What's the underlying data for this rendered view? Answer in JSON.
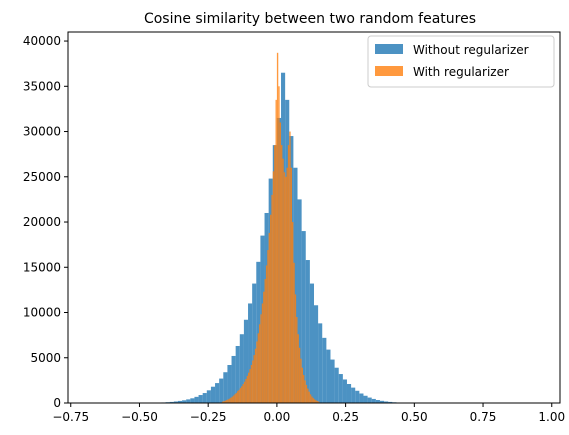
{
  "chart_data": {
    "type": "bar",
    "title": "Cosine similarity between two random features",
    "xlabel": "",
    "ylabel": "",
    "xlim": [
      -0.76,
      1.03
    ],
    "ylim": [
      0,
      41000
    ],
    "x_ticks": [
      -0.75,
      -0.5,
      -0.25,
      0.0,
      0.25,
      0.5,
      0.75,
      1.0
    ],
    "x_tick_labels": [
      "−0.75",
      "−0.50",
      "−0.25",
      "0.00",
      "0.25",
      "0.50",
      "0.75",
      "1.00"
    ],
    "y_ticks": [
      0,
      5000,
      10000,
      15000,
      20000,
      25000,
      30000,
      35000,
      40000
    ],
    "y_tick_labels": [
      "0",
      "5000",
      "10000",
      "15000",
      "20000",
      "25000",
      "30000",
      "35000",
      "40000"
    ],
    "grid": false,
    "legend_position": "top-right",
    "series": [
      {
        "name": "Without regularizer",
        "color": "#1f77b4",
        "opacity": 0.8,
        "bin_width": 0.015,
        "bins": [
          [
            -0.45,
            20
          ],
          [
            -0.435,
            40
          ],
          [
            -0.42,
            60
          ],
          [
            -0.405,
            90
          ],
          [
            -0.39,
            120
          ],
          [
            -0.375,
            170
          ],
          [
            -0.36,
            230
          ],
          [
            -0.345,
            300
          ],
          [
            -0.33,
            400
          ],
          [
            -0.315,
            520
          ],
          [
            -0.3,
            680
          ],
          [
            -0.285,
            880
          ],
          [
            -0.27,
            1100
          ],
          [
            -0.255,
            1400
          ],
          [
            -0.24,
            1800
          ],
          [
            -0.225,
            2200
          ],
          [
            -0.21,
            2700
          ],
          [
            -0.195,
            3400
          ],
          [
            -0.18,
            4200
          ],
          [
            -0.165,
            5200
          ],
          [
            -0.15,
            6300
          ],
          [
            -0.135,
            7600
          ],
          [
            -0.12,
            9200
          ],
          [
            -0.105,
            11000
          ],
          [
            -0.09,
            13200
          ],
          [
            -0.075,
            15600
          ],
          [
            -0.06,
            18500
          ],
          [
            -0.045,
            21000
          ],
          [
            -0.03,
            24800
          ],
          [
            -0.015,
            28500
          ],
          [
            0.0,
            31500
          ],
          [
            0.015,
            36500
          ],
          [
            0.03,
            33500
          ],
          [
            0.045,
            29500
          ],
          [
            0.06,
            26000
          ],
          [
            0.075,
            22500
          ],
          [
            0.09,
            19000
          ],
          [
            0.105,
            15800
          ],
          [
            0.12,
            13200
          ],
          [
            0.135,
            10800
          ],
          [
            0.15,
            8800
          ],
          [
            0.165,
            7200
          ],
          [
            0.18,
            5900
          ],
          [
            0.195,
            4800
          ],
          [
            0.21,
            3900
          ],
          [
            0.225,
            3200
          ],
          [
            0.24,
            2600
          ],
          [
            0.255,
            2100
          ],
          [
            0.27,
            1700
          ],
          [
            0.285,
            1350
          ],
          [
            0.3,
            1050
          ],
          [
            0.315,
            800
          ],
          [
            0.33,
            600
          ],
          [
            0.345,
            450
          ],
          [
            0.36,
            330
          ],
          [
            0.375,
            240
          ],
          [
            0.39,
            170
          ],
          [
            0.405,
            120
          ],
          [
            0.42,
            80
          ],
          [
            0.435,
            55
          ],
          [
            0.45,
            35
          ],
          [
            0.465,
            22
          ],
          [
            0.48,
            14
          ],
          [
            0.495,
            8
          ]
        ]
      },
      {
        "name": "With regularizer",
        "color": "#ff7f0e",
        "opacity": 0.8,
        "bin_width": 0.005,
        "bins": [
          [
            -0.2,
            150
          ],
          [
            -0.195,
            200
          ],
          [
            -0.19,
            260
          ],
          [
            -0.185,
            320
          ],
          [
            -0.18,
            400
          ],
          [
            -0.175,
            480
          ],
          [
            -0.17,
            580
          ],
          [
            -0.165,
            700
          ],
          [
            -0.16,
            820
          ],
          [
            -0.155,
            960
          ],
          [
            -0.15,
            1100
          ],
          [
            -0.145,
            1300
          ],
          [
            -0.14,
            1450
          ],
          [
            -0.135,
            1650
          ],
          [
            -0.13,
            1850
          ],
          [
            -0.125,
            2100
          ],
          [
            -0.12,
            2350
          ],
          [
            -0.115,
            2650
          ],
          [
            -0.11,
            3000
          ],
          [
            -0.105,
            3350
          ],
          [
            -0.1,
            3750
          ],
          [
            -0.095,
            4200
          ],
          [
            -0.09,
            4700
          ],
          [
            -0.085,
            5300
          ],
          [
            -0.08,
            6000
          ],
          [
            -0.075,
            6800
          ],
          [
            -0.07,
            7700
          ],
          [
            -0.065,
            8700
          ],
          [
            -0.06,
            9800
          ],
          [
            -0.055,
            11000
          ],
          [
            -0.05,
            12300
          ],
          [
            -0.045,
            13700
          ],
          [
            -0.04,
            15200
          ],
          [
            -0.035,
            16900
          ],
          [
            -0.03,
            18800
          ],
          [
            -0.025,
            20800
          ],
          [
            -0.02,
            23000
          ],
          [
            -0.015,
            25600
          ],
          [
            -0.01,
            28500
          ],
          [
            -0.005,
            33500
          ],
          [
            0.0,
            38700
          ],
          [
            0.005,
            35000
          ],
          [
            0.01,
            31000
          ],
          [
            0.015,
            28500
          ],
          [
            0.02,
            27000
          ],
          [
            0.025,
            25500
          ],
          [
            0.03,
            25000
          ],
          [
            0.035,
            26000
          ],
          [
            0.04,
            28500
          ],
          [
            0.045,
            30000
          ],
          [
            0.05,
            26000
          ],
          [
            0.055,
            20000
          ],
          [
            0.06,
            15500
          ],
          [
            0.065,
            12000
          ],
          [
            0.07,
            9500
          ],
          [
            0.075,
            7600
          ],
          [
            0.08,
            6100
          ],
          [
            0.085,
            4900
          ],
          [
            0.09,
            3900
          ],
          [
            0.095,
            3100
          ],
          [
            0.1,
            2500
          ],
          [
            0.105,
            2000
          ],
          [
            0.11,
            1600
          ],
          [
            0.115,
            1250
          ],
          [
            0.12,
            950
          ],
          [
            0.125,
            720
          ],
          [
            0.13,
            540
          ],
          [
            0.135,
            400
          ],
          [
            0.14,
            300
          ],
          [
            0.145,
            210
          ],
          [
            0.15,
            150
          ]
        ]
      }
    ]
  }
}
